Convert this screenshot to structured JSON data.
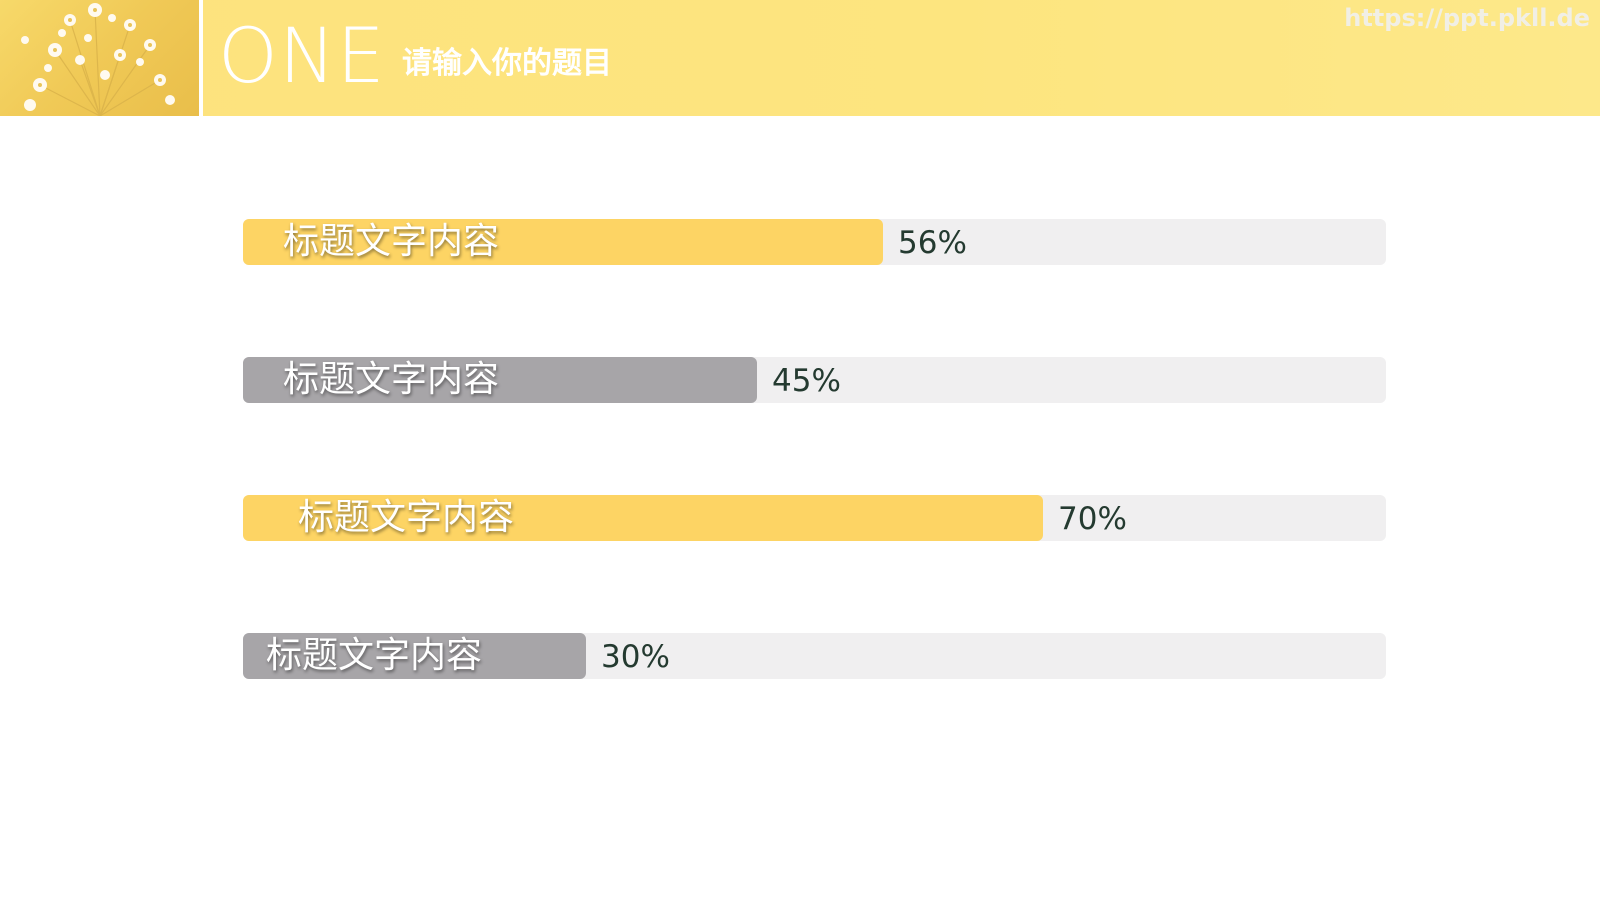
{
  "header": {
    "number_word": "ONE",
    "title": "请输入你的题目",
    "watermark": "https://ppt.pkll.de",
    "bg_color": "#fde27e",
    "thumbnail_icon": "dried-flowers-image"
  },
  "chart_data": {
    "type": "bar",
    "orientation": "horizontal",
    "title": "",
    "xlim": [
      0,
      100
    ],
    "grid": false,
    "categories": [
      "标题文字内容",
      "标题文字内容",
      "标题文字内容",
      "标题文字内容"
    ],
    "values": [
      56,
      45,
      70,
      30
    ],
    "value_labels": [
      "56%",
      "45%",
      "70%",
      "30%"
    ],
    "colors": [
      "#fdd464",
      "#a7a5a8",
      "#fdd464",
      "#a7a5a8"
    ],
    "track_color": "#f0eff0"
  }
}
